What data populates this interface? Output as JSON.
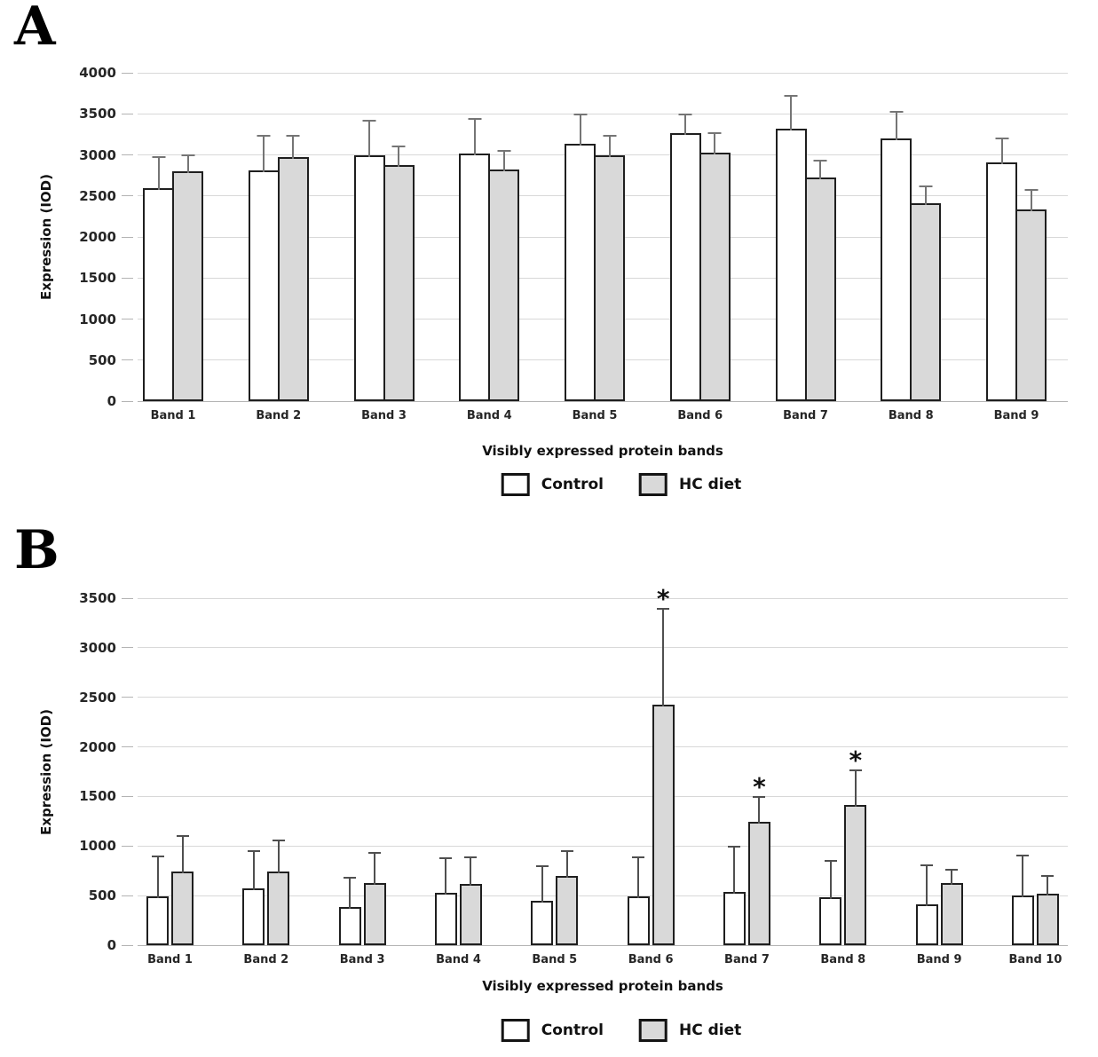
{
  "figure": {
    "panel_letters": [
      "A",
      "B"
    ]
  },
  "chart_data": [
    {
      "type": "bar",
      "panel": "A",
      "title": "",
      "xlabel": "Visibly expressed protein bands",
      "ylabel": "Expression (IOD)",
      "ylim": [
        0,
        4000
      ],
      "yticks": [
        0,
        500,
        1000,
        1500,
        2000,
        2500,
        3000,
        3500,
        4000
      ],
      "grid": true,
      "legend_position": "bottom",
      "categories": [
        "Band 1",
        "Band 2",
        "Band 3",
        "Band 4",
        "Band 5",
        "Band 6",
        "Band 7",
        "Band 8",
        "Band 9"
      ],
      "series": [
        {
          "name": "Control",
          "fill": "#ffffff",
          "values": [
            2600,
            2810,
            3000,
            3020,
            3140,
            3260,
            3320,
            3200,
            2910
          ],
          "errors_plus": [
            410,
            460,
            450,
            450,
            380,
            260,
            430,
            360,
            320
          ]
        },
        {
          "name": "HC diet",
          "fill": "#d9d9d9",
          "values": [
            2800,
            2970,
            2880,
            2820,
            2990,
            3030,
            2720,
            2410,
            2340
          ],
          "errors_plus": [
            230,
            290,
            260,
            260,
            280,
            270,
            240,
            240,
            270
          ]
        }
      ],
      "annotations": []
    },
    {
      "type": "bar",
      "panel": "B",
      "title": "",
      "xlabel": "Visibly expressed protein bands",
      "ylabel": "Expression (IOD)",
      "ylim": [
        0,
        3500
      ],
      "yticks": [
        0,
        500,
        1000,
        1500,
        2000,
        2500,
        3000,
        3500
      ],
      "grid": true,
      "legend_position": "bottom",
      "categories": [
        "Band 1",
        "Band 2",
        "Band 3",
        "Band 4",
        "Band 5",
        "Band 6",
        "Band 7",
        "Band 8",
        "Band 9",
        "Band 10"
      ],
      "series": [
        {
          "name": "Control",
          "fill": "#ffffff",
          "values": [
            490,
            575,
            385,
            530,
            450,
            490,
            540,
            485,
            410,
            500
          ],
          "errors_plus": [
            430,
            400,
            320,
            375,
            370,
            420,
            485,
            395,
            420,
            435
          ]
        },
        {
          "name": "HC diet",
          "fill": "#d9d9d9",
          "values": [
            740,
            745,
            625,
            615,
            695,
            2430,
            1240,
            1415,
            630,
            520
          ],
          "errors_plus": [
            390,
            335,
            330,
            295,
            280,
            990,
            280,
            375,
            160,
            205
          ]
        }
      ],
      "annotations": [
        {
          "series": "HC diet",
          "category": "Band 6",
          "text": "*"
        },
        {
          "series": "HC diet",
          "category": "Band 7",
          "text": "*"
        },
        {
          "series": "HC diet",
          "category": "Band 8",
          "text": "*"
        }
      ]
    }
  ]
}
